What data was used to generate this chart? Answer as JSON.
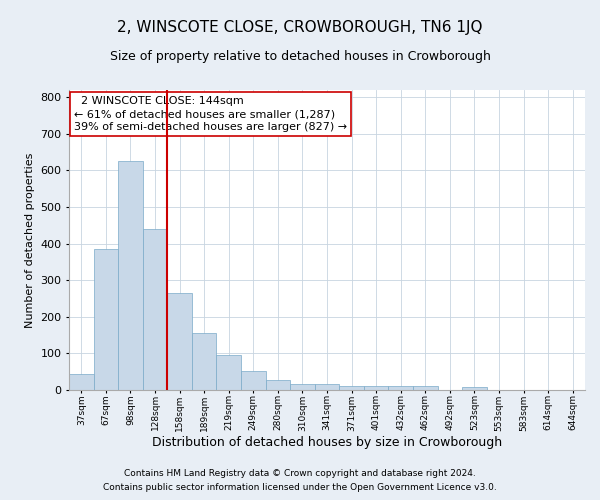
{
  "title": "2, WINSCOTE CLOSE, CROWBOROUGH, TN6 1JQ",
  "subtitle": "Size of property relative to detached houses in Crowborough",
  "xlabel": "Distribution of detached houses by size in Crowborough",
  "ylabel": "Number of detached properties",
  "categories": [
    "37sqm",
    "67sqm",
    "98sqm",
    "128sqm",
    "158sqm",
    "189sqm",
    "219sqm",
    "249sqm",
    "280sqm",
    "310sqm",
    "341sqm",
    "371sqm",
    "401sqm",
    "432sqm",
    "462sqm",
    "492sqm",
    "523sqm",
    "553sqm",
    "583sqm",
    "614sqm",
    "644sqm"
  ],
  "values": [
    45,
    385,
    625,
    440,
    265,
    155,
    95,
    52,
    28,
    17,
    17,
    12,
    12,
    12,
    10,
    0,
    8,
    0,
    0,
    0,
    0
  ],
  "bar_color": "#c8d8e8",
  "bar_edge_color": "#7aaac8",
  "red_line_x": 3.5,
  "annotation_line1": "  2 WINSCOTE CLOSE: 144sqm",
  "annotation_line2": "← 61% of detached houses are smaller (1,287)",
  "annotation_line3": "39% of semi-detached houses are larger (827) →",
  "annotation_box_color": "#ffffff",
  "annotation_box_edge": "#cc0000",
  "ylim": [
    0,
    820
  ],
  "yticks": [
    0,
    100,
    200,
    300,
    400,
    500,
    600,
    700,
    800
  ],
  "footer1": "Contains HM Land Registry data © Crown copyright and database right 2024.",
  "footer2": "Contains public sector information licensed under the Open Government Licence v3.0.",
  "background_color": "#e8eef5",
  "plot_background": "#ffffff",
  "title_fontsize": 11,
  "subtitle_fontsize": 9,
  "annotation_fontsize": 8,
  "xlabel_fontsize": 9,
  "ylabel_fontsize": 8,
  "grid_color": "#c8d4e0",
  "footer_fontsize": 6.5
}
